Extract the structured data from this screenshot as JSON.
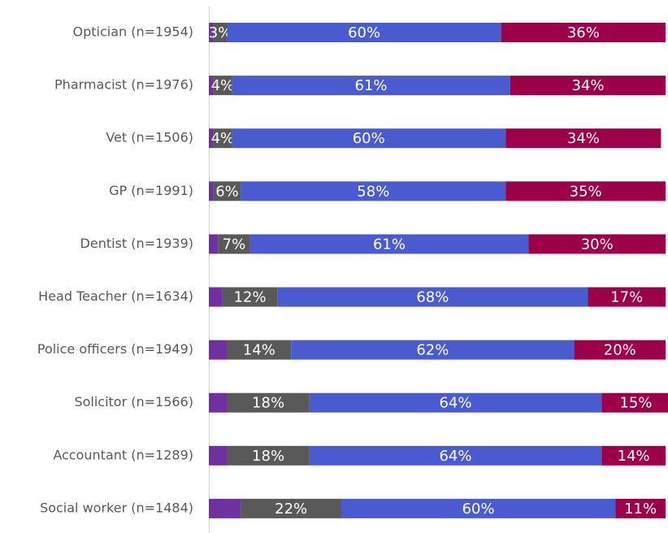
{
  "chart_data": {
    "type": "stacked-bar-horizontal",
    "categories": [
      "Optician (n=1954)",
      "Pharmacist (n=1976)",
      "Vet (n=1506)",
      "GP (n=1991)",
      "Dentist (n=1939)",
      "Head Teacher (n=1634)",
      "Police officers (n=1949)",
      "Solicitor (n=1566)",
      "Accountant (n=1289)",
      "Social worker (n=1484)"
    ],
    "series": [
      {
        "color": "#7030a0",
        "values": [
          1,
          1,
          1,
          1,
          2,
          3,
          4,
          4,
          4,
          7
        ]
      },
      {
        "color": "#595959",
        "values": [
          3,
          4,
          4,
          6,
          7,
          12,
          14,
          18,
          18,
          22
        ],
        "value_labels": [
          "3%",
          "4%",
          "4%",
          "6%",
          "7%",
          "12%",
          "14%",
          "18%",
          "18%",
          "22%"
        ]
      },
      {
        "color": "#4a5bd0",
        "values": [
          60,
          61,
          60,
          58,
          61,
          68,
          62,
          64,
          64,
          60
        ],
        "value_labels": [
          "60%",
          "61%",
          "60%",
          "58%",
          "61%",
          "68%",
          "62%",
          "64%",
          "64%",
          "60%"
        ]
      },
      {
        "color": "#9b0048",
        "values": [
          36,
          34,
          34,
          35,
          30,
          17,
          20,
          15,
          14,
          11
        ],
        "value_labels": [
          "36%",
          "34%",
          "34%",
          "35%",
          "30%",
          "17%",
          "20%",
          "15%",
          "14%",
          "11%"
        ]
      }
    ],
    "xlim": [
      0,
      100
    ]
  }
}
